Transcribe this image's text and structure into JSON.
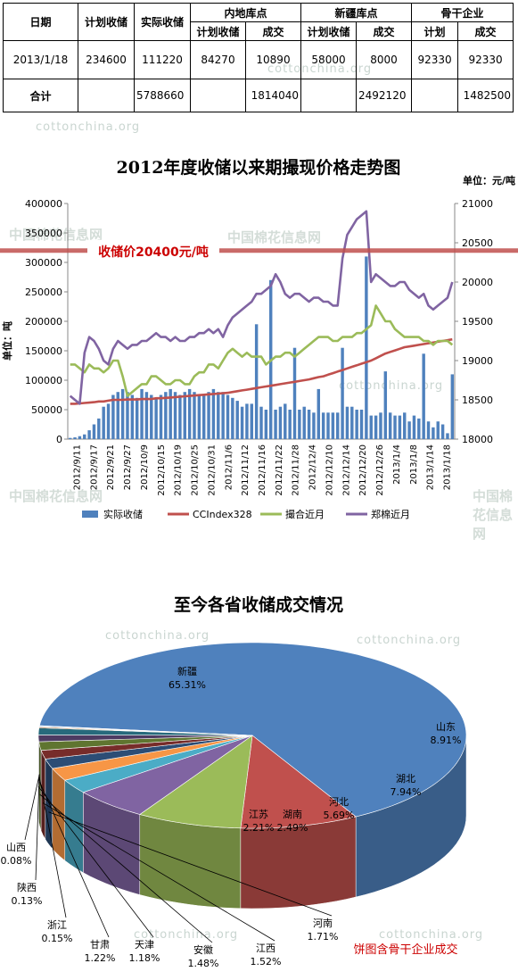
{
  "watermarks": {
    "cotton": "cottonchina.org",
    "cotton_cn": "中国棉花信息网"
  },
  "table": {
    "header": {
      "date": "日期",
      "planned": "计划收储",
      "actual": "实际收储",
      "inland": "内地库点",
      "xinjiang": "新疆库点",
      "backbone": "骨干企业",
      "sub_planned": "计划收储",
      "sub_deal": "成交",
      "sub_plan": "计划"
    },
    "row1": {
      "date": "2013/1/18",
      "planned": "234600",
      "actual": "111220",
      "inland_planned": "84270",
      "inland_deal": "10890",
      "xinjiang_planned": "58000",
      "xinjiang_deal": "8000",
      "backbone_plan": "92330",
      "backbone_deal": "92330"
    },
    "total": {
      "label": "合计",
      "actual": "5788660",
      "inland_deal": "1814040",
      "xinjiang_deal": "2492120",
      "backbone_deal": "1482500"
    }
  },
  "colors": {
    "bar": "#4f81bd",
    "cc_index": "#c0504d",
    "zhengzhou_match": "#9bbb59",
    "zhengzhou_cotton": "#8064a2",
    "reserve_line": "#c0504d",
    "reserve_label": "#cc0000"
  },
  "chart_data": [
    {
      "type": "bar+line",
      "title": "2012年度收储以来期撮现价格走势图",
      "unit_right": "单位：元/吨",
      "ylabel": "单位：吨",
      "annotation": "收储价20400元/吨",
      "reserve_price": 20400,
      "ylim": [
        0,
        400000
      ],
      "y2lim": [
        18000,
        21000
      ],
      "yticks": [
        0,
        50000,
        100000,
        150000,
        200000,
        250000,
        300000,
        350000,
        400000
      ],
      "y2ticks": [
        18000,
        18500,
        19000,
        19500,
        20000,
        20500,
        21000
      ],
      "x_ticks": [
        "2012/9/11",
        "2012/9/17",
        "2012/9/21",
        "2012/9/27",
        "2012/10/9",
        "2012/10/15",
        "2012/10/19",
        "2012/10/25",
        "2012/10/31",
        "2012/11/6",
        "2012/11/12",
        "2012/11/16",
        "2012/11/22",
        "2012/11/28",
        "2012/12/4",
        "2012/12/10",
        "2012/12/14",
        "2012/12/20",
        "2012/12/26",
        "2013/1/4",
        "2013/1/8",
        "2013/1/14",
        "2013/1/18"
      ],
      "series": [
        {
          "name": "实际收储",
          "kind": "bar",
          "axis": "left",
          "values": [
            2000,
            3000,
            5000,
            8000,
            15000,
            25000,
            35000,
            55000,
            60000,
            75000,
            80000,
            85000,
            80000,
            75000,
            70000,
            85000,
            80000,
            75000,
            70000,
            75000,
            80000,
            85000,
            80000,
            75000,
            80000,
            85000,
            80000,
            75000,
            75000,
            80000,
            85000,
            80000,
            80000,
            75000,
            70000,
            65000,
            55000,
            60000,
            60000,
            195000,
            55000,
            50000,
            270000,
            50000,
            55000,
            60000,
            50000,
            155000,
            50000,
            55000,
            50000,
            45000,
            85000,
            45000,
            45000,
            45000,
            45000,
            155000,
            55000,
            55000,
            50000,
            50000,
            310000,
            40000,
            40000,
            45000,
            115000,
            45000,
            40000,
            40000,
            45000,
            30000,
            40000,
            35000,
            145000,
            30000,
            20000,
            30000,
            25000,
            10000,
            110000
          ]
        },
        {
          "name": "CCIndex328",
          "kind": "line",
          "axis": "right",
          "values": [
            18450,
            18450,
            18455,
            18460,
            18465,
            18470,
            18480,
            18480,
            18490,
            18500,
            18500,
            18500,
            18505,
            18505,
            18505,
            18510,
            18510,
            18510,
            18520,
            18520,
            18525,
            18530,
            18535,
            18540,
            18545,
            18550,
            18555,
            18560,
            18565,
            18570,
            18575,
            18580,
            18585,
            18590,
            18600,
            18610,
            18620,
            18630,
            18640,
            18650,
            18660,
            18670,
            18680,
            18690,
            18700,
            18710,
            18720,
            18730,
            18740,
            18750,
            18760,
            18775,
            18790,
            18800,
            18820,
            18840,
            18860,
            18880,
            18900,
            18920,
            18940,
            18960,
            18980,
            19000,
            19030,
            19060,
            19090,
            19110,
            19130,
            19150,
            19170,
            19180,
            19190,
            19200,
            19210,
            19220,
            19230,
            19240,
            19250,
            19260,
            19270
          ]
        },
        {
          "name": "撮合近月",
          "kind": "line",
          "axis": "right",
          "values": [
            18950,
            18950,
            18900,
            18850,
            18950,
            18900,
            18900,
            18850,
            18900,
            19000,
            19000,
            18800,
            18550,
            18600,
            18650,
            18700,
            18700,
            18800,
            18800,
            18750,
            18700,
            18700,
            18750,
            18750,
            18700,
            18700,
            18800,
            18850,
            18850,
            18950,
            18950,
            18900,
            19000,
            19100,
            19150,
            19100,
            19050,
            19100,
            19050,
            19050,
            19050,
            18950,
            19000,
            19050,
            19050,
            19100,
            19100,
            19050,
            19100,
            19150,
            19200,
            19250,
            19300,
            19300,
            19300,
            19250,
            19250,
            19300,
            19300,
            19300,
            19350,
            19350,
            19400,
            19450,
            19700,
            19600,
            19500,
            19500,
            19400,
            19350,
            19300,
            19300,
            19300,
            19300,
            19250,
            19250,
            19200,
            19250,
            19250,
            19250,
            19200
          ]
        },
        {
          "name": "郑棉近月",
          "kind": "line",
          "axis": "right",
          "values": [
            18550,
            18500,
            18450,
            19100,
            19300,
            19250,
            19150,
            19000,
            18950,
            19150,
            19250,
            19200,
            19150,
            19200,
            19200,
            19250,
            19250,
            19300,
            19350,
            19300,
            19300,
            19250,
            19300,
            19250,
            19250,
            19300,
            19300,
            19350,
            19350,
            19400,
            19350,
            19400,
            19300,
            19450,
            19550,
            19600,
            19650,
            19700,
            19750,
            19850,
            19850,
            19900,
            19950,
            20100,
            20000,
            19850,
            19800,
            19850,
            19850,
            19800,
            19750,
            19800,
            19800,
            19750,
            19750,
            19700,
            19700,
            20300,
            20600,
            20700,
            20800,
            20850,
            20900,
            20000,
            20100,
            20050,
            20000,
            19950,
            19950,
            20000,
            20000,
            19900,
            19850,
            19800,
            19850,
            19700,
            19650,
            19700,
            19750,
            19800,
            20000
          ]
        }
      ]
    },
    {
      "type": "pie",
      "title": "至今各省收储成交情况",
      "note": "饼图含骨干企业成交",
      "slices": [
        {
          "name": "新疆",
          "value": 65.31,
          "label": "65.31%",
          "color": "#4f81bd"
        },
        {
          "name": "山东",
          "value": 8.91,
          "label": "8.91%",
          "color": "#c0504d"
        },
        {
          "name": "湖北",
          "value": 7.94,
          "label": "7.94%",
          "color": "#9bbb59"
        },
        {
          "name": "河北",
          "value": 5.69,
          "label": "5.69%",
          "color": "#8064a2"
        },
        {
          "name": "湖南",
          "value": 2.49,
          "label": "2.49%",
          "color": "#4bacc6"
        },
        {
          "name": "江苏",
          "value": 2.21,
          "label": "2.21%",
          "color": "#f79646"
        },
        {
          "name": "河南",
          "value": 1.71,
          "label": "1.71%",
          "color": "#2c4d75"
        },
        {
          "name": "江西",
          "value": 1.52,
          "label": "1.52%",
          "color": "#772c2a"
        },
        {
          "name": "安徽",
          "value": 1.48,
          "label": "1.48%",
          "color": "#5f7530"
        },
        {
          "name": "天津",
          "value": 1.18,
          "label": "1.18%",
          "color": "#4d3b62"
        },
        {
          "name": "甘肃",
          "value": 1.22,
          "label": "1.22%",
          "color": "#276a7c"
        },
        {
          "name": "浙江",
          "value": 0.15,
          "label": "0.15%",
          "color": "#b65708"
        },
        {
          "name": "陕西",
          "value": 0.13,
          "label": "0.13%",
          "color": "#729aca"
        },
        {
          "name": "山西",
          "value": 0.08,
          "label": "0.08%",
          "color": "#cd7371"
        }
      ]
    }
  ]
}
